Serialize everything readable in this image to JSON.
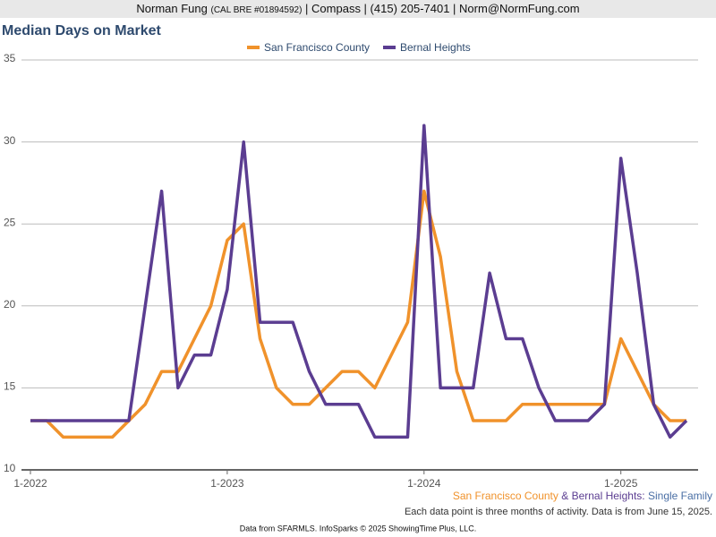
{
  "header": {
    "name": "Norman Fung",
    "license": "(CAL BRE #01894592)",
    "rest": "| Compass | (415) 205-7401 | Norm@NormFung.com"
  },
  "chart_data": {
    "type": "line",
    "title": "Median Days on Market",
    "categories": [
      "1-2022",
      null,
      null,
      null,
      null,
      null,
      null,
      null,
      null,
      null,
      null,
      null,
      "1-2023",
      null,
      null,
      null,
      null,
      null,
      null,
      null,
      null,
      null,
      null,
      null,
      "1-2024",
      null,
      null,
      null,
      null,
      null,
      null,
      null,
      null,
      null,
      null,
      null,
      "1-2025",
      null,
      null,
      null,
      null
    ],
    "series": [
      {
        "name": "San Francisco County",
        "color": "#f0922b",
        "values": [
          13,
          13,
          12,
          12,
          12,
          12,
          13,
          14,
          16,
          16,
          18,
          20,
          24,
          25,
          18,
          15,
          14,
          14,
          15,
          16,
          16,
          15,
          17,
          19,
          27,
          23,
          16,
          13,
          13,
          13,
          14,
          14,
          14,
          14,
          14,
          14,
          18,
          16,
          14,
          13,
          13
        ]
      },
      {
        "name": "Bernal Heights",
        "color": "#5b3d91",
        "values": [
          13,
          13,
          13,
          13,
          13,
          13,
          13,
          20,
          27,
          15,
          17,
          17,
          21,
          30,
          19,
          19,
          19,
          16,
          14,
          14,
          14,
          12,
          12,
          12,
          31,
          15,
          15,
          15,
          22,
          18,
          18,
          15,
          13,
          13,
          13,
          14,
          29,
          22,
          14,
          12,
          13
        ]
      }
    ],
    "ylim": [
      10,
      35
    ],
    "yticks": [
      10,
      15,
      20,
      25,
      30,
      35
    ],
    "grid": true,
    "legend": "top",
    "annotation": {
      "area1": "San Francisco County",
      "area2": "& Bernal Heights:",
      "segment": "Single Family"
    },
    "note": "Each data point is three months of activity. Data is from June 15, 2025."
  },
  "footer": "Data from SFARMLS. InfoSparks © 2025 ShowingTime Plus, LLC."
}
